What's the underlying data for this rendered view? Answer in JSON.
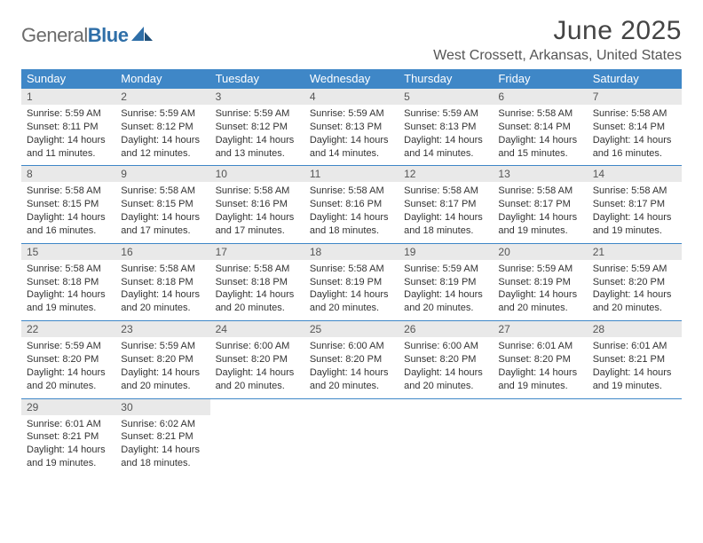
{
  "brand": {
    "gray": "General",
    "blue": "Blue"
  },
  "title": "June 2025",
  "location": "West Crossett, Arkansas, United States",
  "colors": {
    "header_bg": "#3f87c7",
    "header_text": "#ffffff",
    "datebar_bg": "#e9e9e9",
    "rule": "#3f87c7",
    "body_text": "#333333"
  },
  "day_names": [
    "Sunday",
    "Monday",
    "Tuesday",
    "Wednesday",
    "Thursday",
    "Friday",
    "Saturday"
  ],
  "weeks": [
    [
      {
        "n": "1",
        "sr": "5:59 AM",
        "ss": "8:11 PM",
        "dl": "14 hours and 11 minutes."
      },
      {
        "n": "2",
        "sr": "5:59 AM",
        "ss": "8:12 PM",
        "dl": "14 hours and 12 minutes."
      },
      {
        "n": "3",
        "sr": "5:59 AM",
        "ss": "8:12 PM",
        "dl": "14 hours and 13 minutes."
      },
      {
        "n": "4",
        "sr": "5:59 AM",
        "ss": "8:13 PM",
        "dl": "14 hours and 14 minutes."
      },
      {
        "n": "5",
        "sr": "5:59 AM",
        "ss": "8:13 PM",
        "dl": "14 hours and 14 minutes."
      },
      {
        "n": "6",
        "sr": "5:58 AM",
        "ss": "8:14 PM",
        "dl": "14 hours and 15 minutes."
      },
      {
        "n": "7",
        "sr": "5:58 AM",
        "ss": "8:14 PM",
        "dl": "14 hours and 16 minutes."
      }
    ],
    [
      {
        "n": "8",
        "sr": "5:58 AM",
        "ss": "8:15 PM",
        "dl": "14 hours and 16 minutes."
      },
      {
        "n": "9",
        "sr": "5:58 AM",
        "ss": "8:15 PM",
        "dl": "14 hours and 17 minutes."
      },
      {
        "n": "10",
        "sr": "5:58 AM",
        "ss": "8:16 PM",
        "dl": "14 hours and 17 minutes."
      },
      {
        "n": "11",
        "sr": "5:58 AM",
        "ss": "8:16 PM",
        "dl": "14 hours and 18 minutes."
      },
      {
        "n": "12",
        "sr": "5:58 AM",
        "ss": "8:17 PM",
        "dl": "14 hours and 18 minutes."
      },
      {
        "n": "13",
        "sr": "5:58 AM",
        "ss": "8:17 PM",
        "dl": "14 hours and 19 minutes."
      },
      {
        "n": "14",
        "sr": "5:58 AM",
        "ss": "8:17 PM",
        "dl": "14 hours and 19 minutes."
      }
    ],
    [
      {
        "n": "15",
        "sr": "5:58 AM",
        "ss": "8:18 PM",
        "dl": "14 hours and 19 minutes."
      },
      {
        "n": "16",
        "sr": "5:58 AM",
        "ss": "8:18 PM",
        "dl": "14 hours and 20 minutes."
      },
      {
        "n": "17",
        "sr": "5:58 AM",
        "ss": "8:18 PM",
        "dl": "14 hours and 20 minutes."
      },
      {
        "n": "18",
        "sr": "5:58 AM",
        "ss": "8:19 PM",
        "dl": "14 hours and 20 minutes."
      },
      {
        "n": "19",
        "sr": "5:59 AM",
        "ss": "8:19 PM",
        "dl": "14 hours and 20 minutes."
      },
      {
        "n": "20",
        "sr": "5:59 AM",
        "ss": "8:19 PM",
        "dl": "14 hours and 20 minutes."
      },
      {
        "n": "21",
        "sr": "5:59 AM",
        "ss": "8:20 PM",
        "dl": "14 hours and 20 minutes."
      }
    ],
    [
      {
        "n": "22",
        "sr": "5:59 AM",
        "ss": "8:20 PM",
        "dl": "14 hours and 20 minutes."
      },
      {
        "n": "23",
        "sr": "5:59 AM",
        "ss": "8:20 PM",
        "dl": "14 hours and 20 minutes."
      },
      {
        "n": "24",
        "sr": "6:00 AM",
        "ss": "8:20 PM",
        "dl": "14 hours and 20 minutes."
      },
      {
        "n": "25",
        "sr": "6:00 AM",
        "ss": "8:20 PM",
        "dl": "14 hours and 20 minutes."
      },
      {
        "n": "26",
        "sr": "6:00 AM",
        "ss": "8:20 PM",
        "dl": "14 hours and 20 minutes."
      },
      {
        "n": "27",
        "sr": "6:01 AM",
        "ss": "8:20 PM",
        "dl": "14 hours and 19 minutes."
      },
      {
        "n": "28",
        "sr": "6:01 AM",
        "ss": "8:21 PM",
        "dl": "14 hours and 19 minutes."
      }
    ],
    [
      {
        "n": "29",
        "sr": "6:01 AM",
        "ss": "8:21 PM",
        "dl": "14 hours and 19 minutes."
      },
      {
        "n": "30",
        "sr": "6:02 AM",
        "ss": "8:21 PM",
        "dl": "14 hours and 18 minutes."
      },
      null,
      null,
      null,
      null,
      null
    ]
  ],
  "labels": {
    "sunrise": "Sunrise:",
    "sunset": "Sunset:",
    "daylight": "Daylight:"
  }
}
